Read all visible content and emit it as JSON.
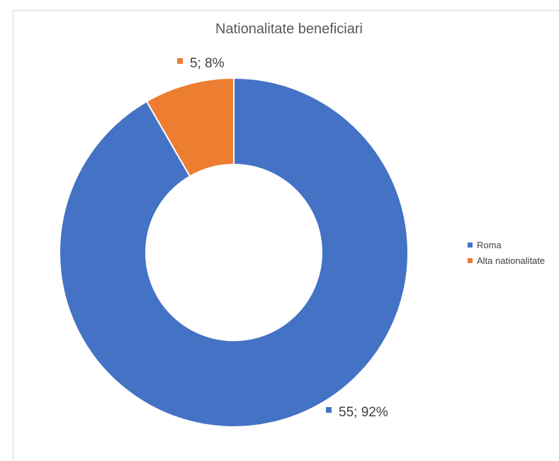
{
  "chart_data": {
    "type": "pie",
    "variant": "doughnut",
    "title": "Nationalitate beneficiari",
    "legend_position": "right",
    "slices": [
      {
        "name": "Roma",
        "value": 55,
        "percent": 92,
        "label": "55; 92%",
        "color": "#4472c4"
      },
      {
        "name": "Alta nationalitate",
        "value": 5,
        "percent": 8,
        "label": "5; 8%",
        "color": "#ed7d31"
      }
    ]
  }
}
